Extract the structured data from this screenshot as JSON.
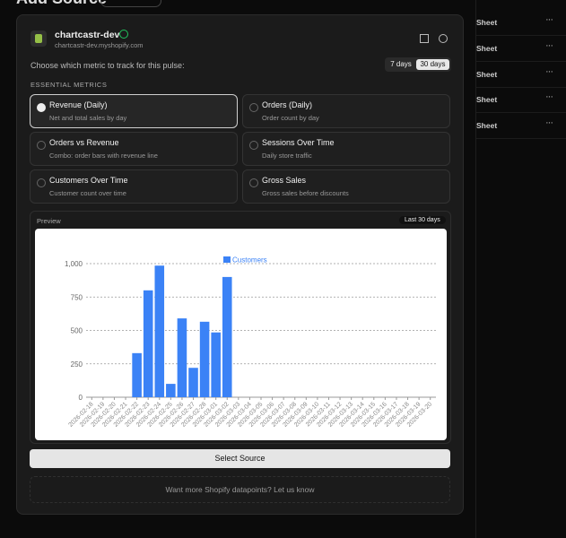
{
  "header": {
    "title": "Add Source"
  },
  "store": {
    "name": "chartcastr-dev",
    "domain": "chartcastr-dev.myshopify.com"
  },
  "prompt": "Choose which metric to track for this pulse:",
  "ranges": [
    "7 days",
    "30 days"
  ],
  "section_title": "ESSENTIAL METRICS",
  "metrics": [
    {
      "title": "Revenue (Daily)",
      "desc": "Net and total sales by day"
    },
    {
      "title": "Orders (Daily)",
      "desc": "Order count by day"
    },
    {
      "title": "Orders vs Revenue",
      "desc": "Combo: order bars with revenue line"
    },
    {
      "title": "Sessions Over Time",
      "desc": "Daily store traffic"
    },
    {
      "title": "Customers Over Time",
      "desc": "Customer count over time"
    },
    {
      "title": "Gross Sales",
      "desc": "Gross sales before discounts"
    }
  ],
  "preview": {
    "label": "Preview",
    "badge": "Last 30 days"
  },
  "chart_data": {
    "type": "bar",
    "categories": [
      "2026-02-18",
      "2026-02-19",
      "2026-02-20",
      "2026-02-21",
      "2026-02-22",
      "2026-02-23",
      "2026-02-24",
      "2026-02-25",
      "2026-02-26",
      "2026-02-27",
      "2026-02-28",
      "2026-03-01",
      "2026-03-02",
      "2026-03-03",
      "2026-03-04",
      "2026-03-05",
      "2026-03-06",
      "2026-03-07",
      "2026-03-08",
      "2026-03-09",
      "2026-03-10",
      "2026-03-11",
      "2026-03-12",
      "2026-03-13",
      "2026-03-14",
      "2026-03-15",
      "2026-03-16",
      "2026-03-17",
      "2026-03-18",
      "2026-03-19",
      "2026-03-20"
    ],
    "series": [
      {
        "name": "Customers",
        "color": "#3b82f6",
        "values": [
          0,
          0,
          0,
          0,
          330,
          800,
          985,
          100,
          590,
          220,
          565,
          485,
          900,
          0,
          0,
          0,
          0,
          0,
          0,
          0,
          0,
          0,
          0,
          0,
          0,
          0,
          0,
          0,
          0,
          0,
          0
        ]
      }
    ],
    "ylim": [
      0,
      1000
    ],
    "yticks": [
      0,
      250,
      500,
      750,
      {
        "value": 1000,
        "label": "1,000"
      }
    ],
    "grid": true
  },
  "select_button": "Select Source",
  "footer_link": "Want more Shopify datapoints? Let us know",
  "sidebar": {
    "rows": [
      "Sheet",
      "Sheet",
      "Sheet",
      "Sheet",
      "Sheet"
    ]
  }
}
